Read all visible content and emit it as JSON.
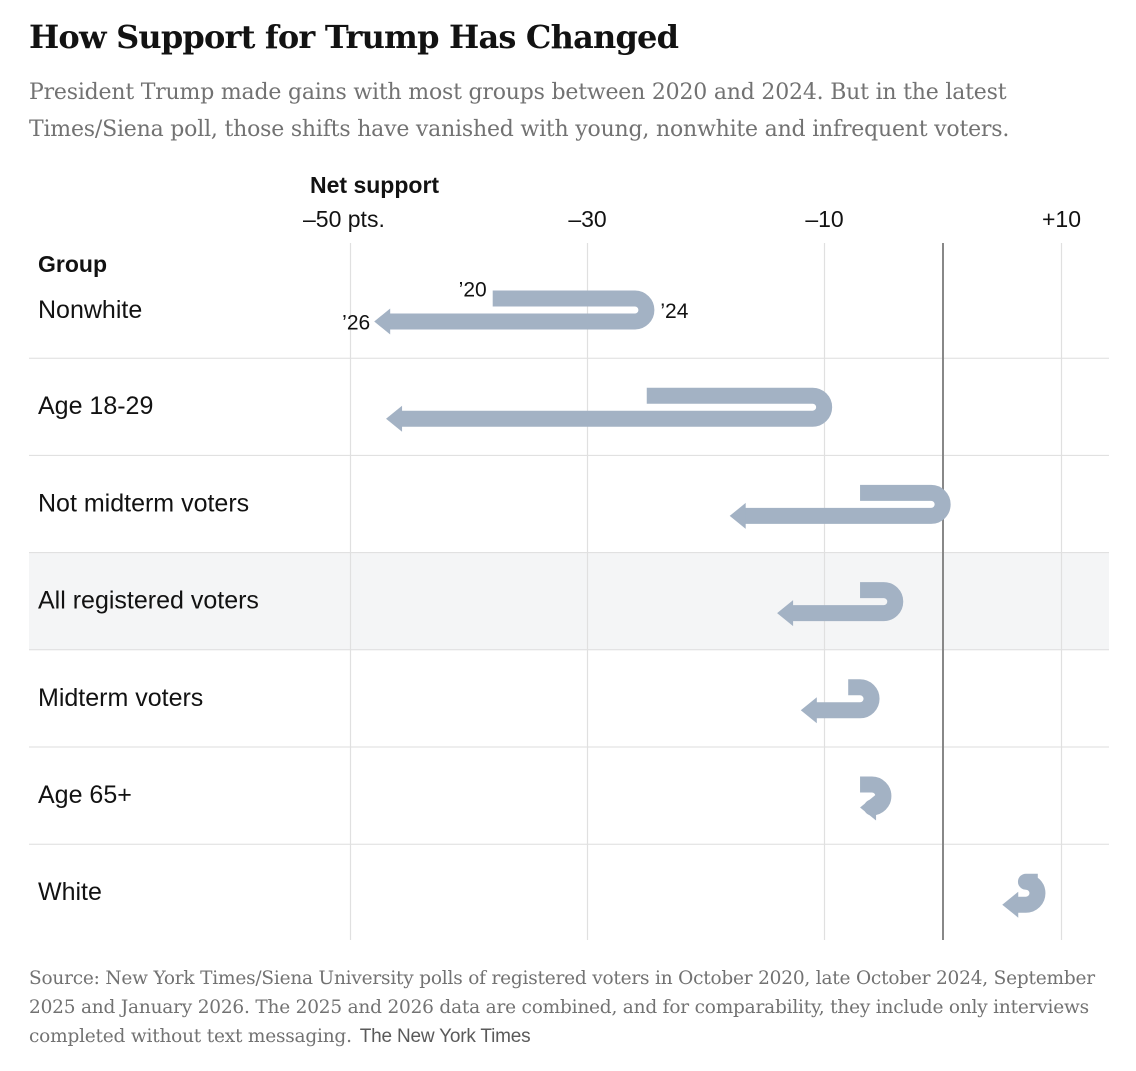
{
  "title": "How Support for Trump Has Changed",
  "subtitle": "President Trump made gains with most groups between 2020 and 2024. But in the latest Times/Siena poll, those shifts have vanished with young, nonwhite and infrequent voters.",
  "source": "Source: New York Times/Siena University polls of registered voters in October 2020, late October 2024, September 2025 and January 2026. The 2025 and 2026 data are combined, and for comparability, they include only interviews completed without text messaging.",
  "credit": "The New York Times",
  "colors": {
    "arrow": "#a3b2c4",
    "grid": "#e0e0e0",
    "zero": "#888888",
    "highlight": "#f4f5f6",
    "separator": "#dddddd"
  },
  "chart_data": {
    "type": "arrow",
    "axis_title": "Net support",
    "group_header": "Group",
    "x_range": [
      -55,
      14
    ],
    "ticks": [
      {
        "value": -50,
        "label": "–50 pts."
      },
      {
        "value": -30,
        "label": "–30"
      },
      {
        "value": -10,
        "label": "–10"
      },
      {
        "value": 10,
        "label": "+10"
      }
    ],
    "point_labels": {
      "y2020": "’20",
      "y2024": "’24",
      "y2026": "’26"
    },
    "rows": [
      {
        "group": "Nonwhite",
        "v2020": -38,
        "v2024": -26,
        "v2026": -48,
        "highlight": false
      },
      {
        "group": "Age 18-29",
        "v2020": -25,
        "v2024": -11,
        "v2026": -47,
        "highlight": false
      },
      {
        "group": "Not midterm voters",
        "v2020": -7,
        "v2024": -1,
        "v2026": -18,
        "highlight": false
      },
      {
        "group": "All registered voters",
        "v2020": -7,
        "v2024": -5,
        "v2026": -14,
        "highlight": true
      },
      {
        "group": "Midterm voters",
        "v2020": -8,
        "v2024": -7,
        "v2026": -12,
        "highlight": false
      },
      {
        "group": "Age 65+",
        "v2020": -7,
        "v2024": -6,
        "v2026": -7,
        "highlight": false
      },
      {
        "group": "White",
        "v2020": 8,
        "v2024": 7,
        "v2026": 5,
        "highlight": false
      }
    ]
  }
}
